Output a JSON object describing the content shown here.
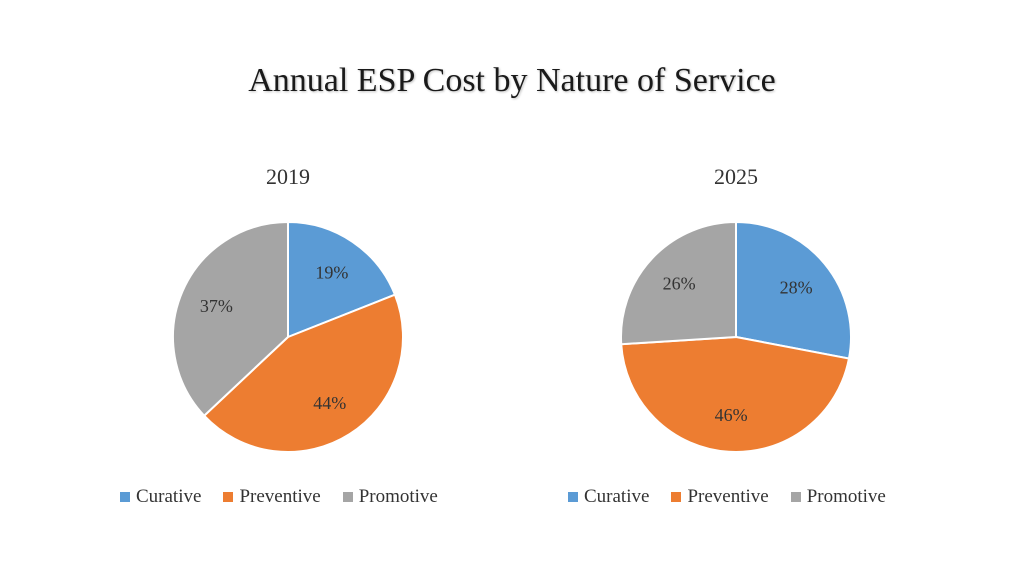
{
  "title": "Annual ESP Cost by Nature of Service",
  "chart_data": [
    {
      "type": "pie",
      "title": "2019",
      "labels": [
        "Curative",
        "Preventive",
        "Promotive"
      ],
      "values": [
        19,
        44,
        37
      ],
      "value_labels": [
        "19%",
        "44%",
        "37%"
      ],
      "colors": [
        "#5B9BD5",
        "#ED7D31",
        "#A5A5A5"
      ],
      "legend_position": "bottom"
    },
    {
      "type": "pie",
      "title": "2025",
      "labels": [
        "Curative",
        "Preventive",
        "Promotive"
      ],
      "values": [
        28,
        46,
        26
      ],
      "value_labels": [
        "28%",
        "46%",
        "26%"
      ],
      "colors": [
        "#5B9BD5",
        "#ED7D31",
        "#A5A5A5"
      ],
      "legend_position": "bottom"
    }
  ]
}
